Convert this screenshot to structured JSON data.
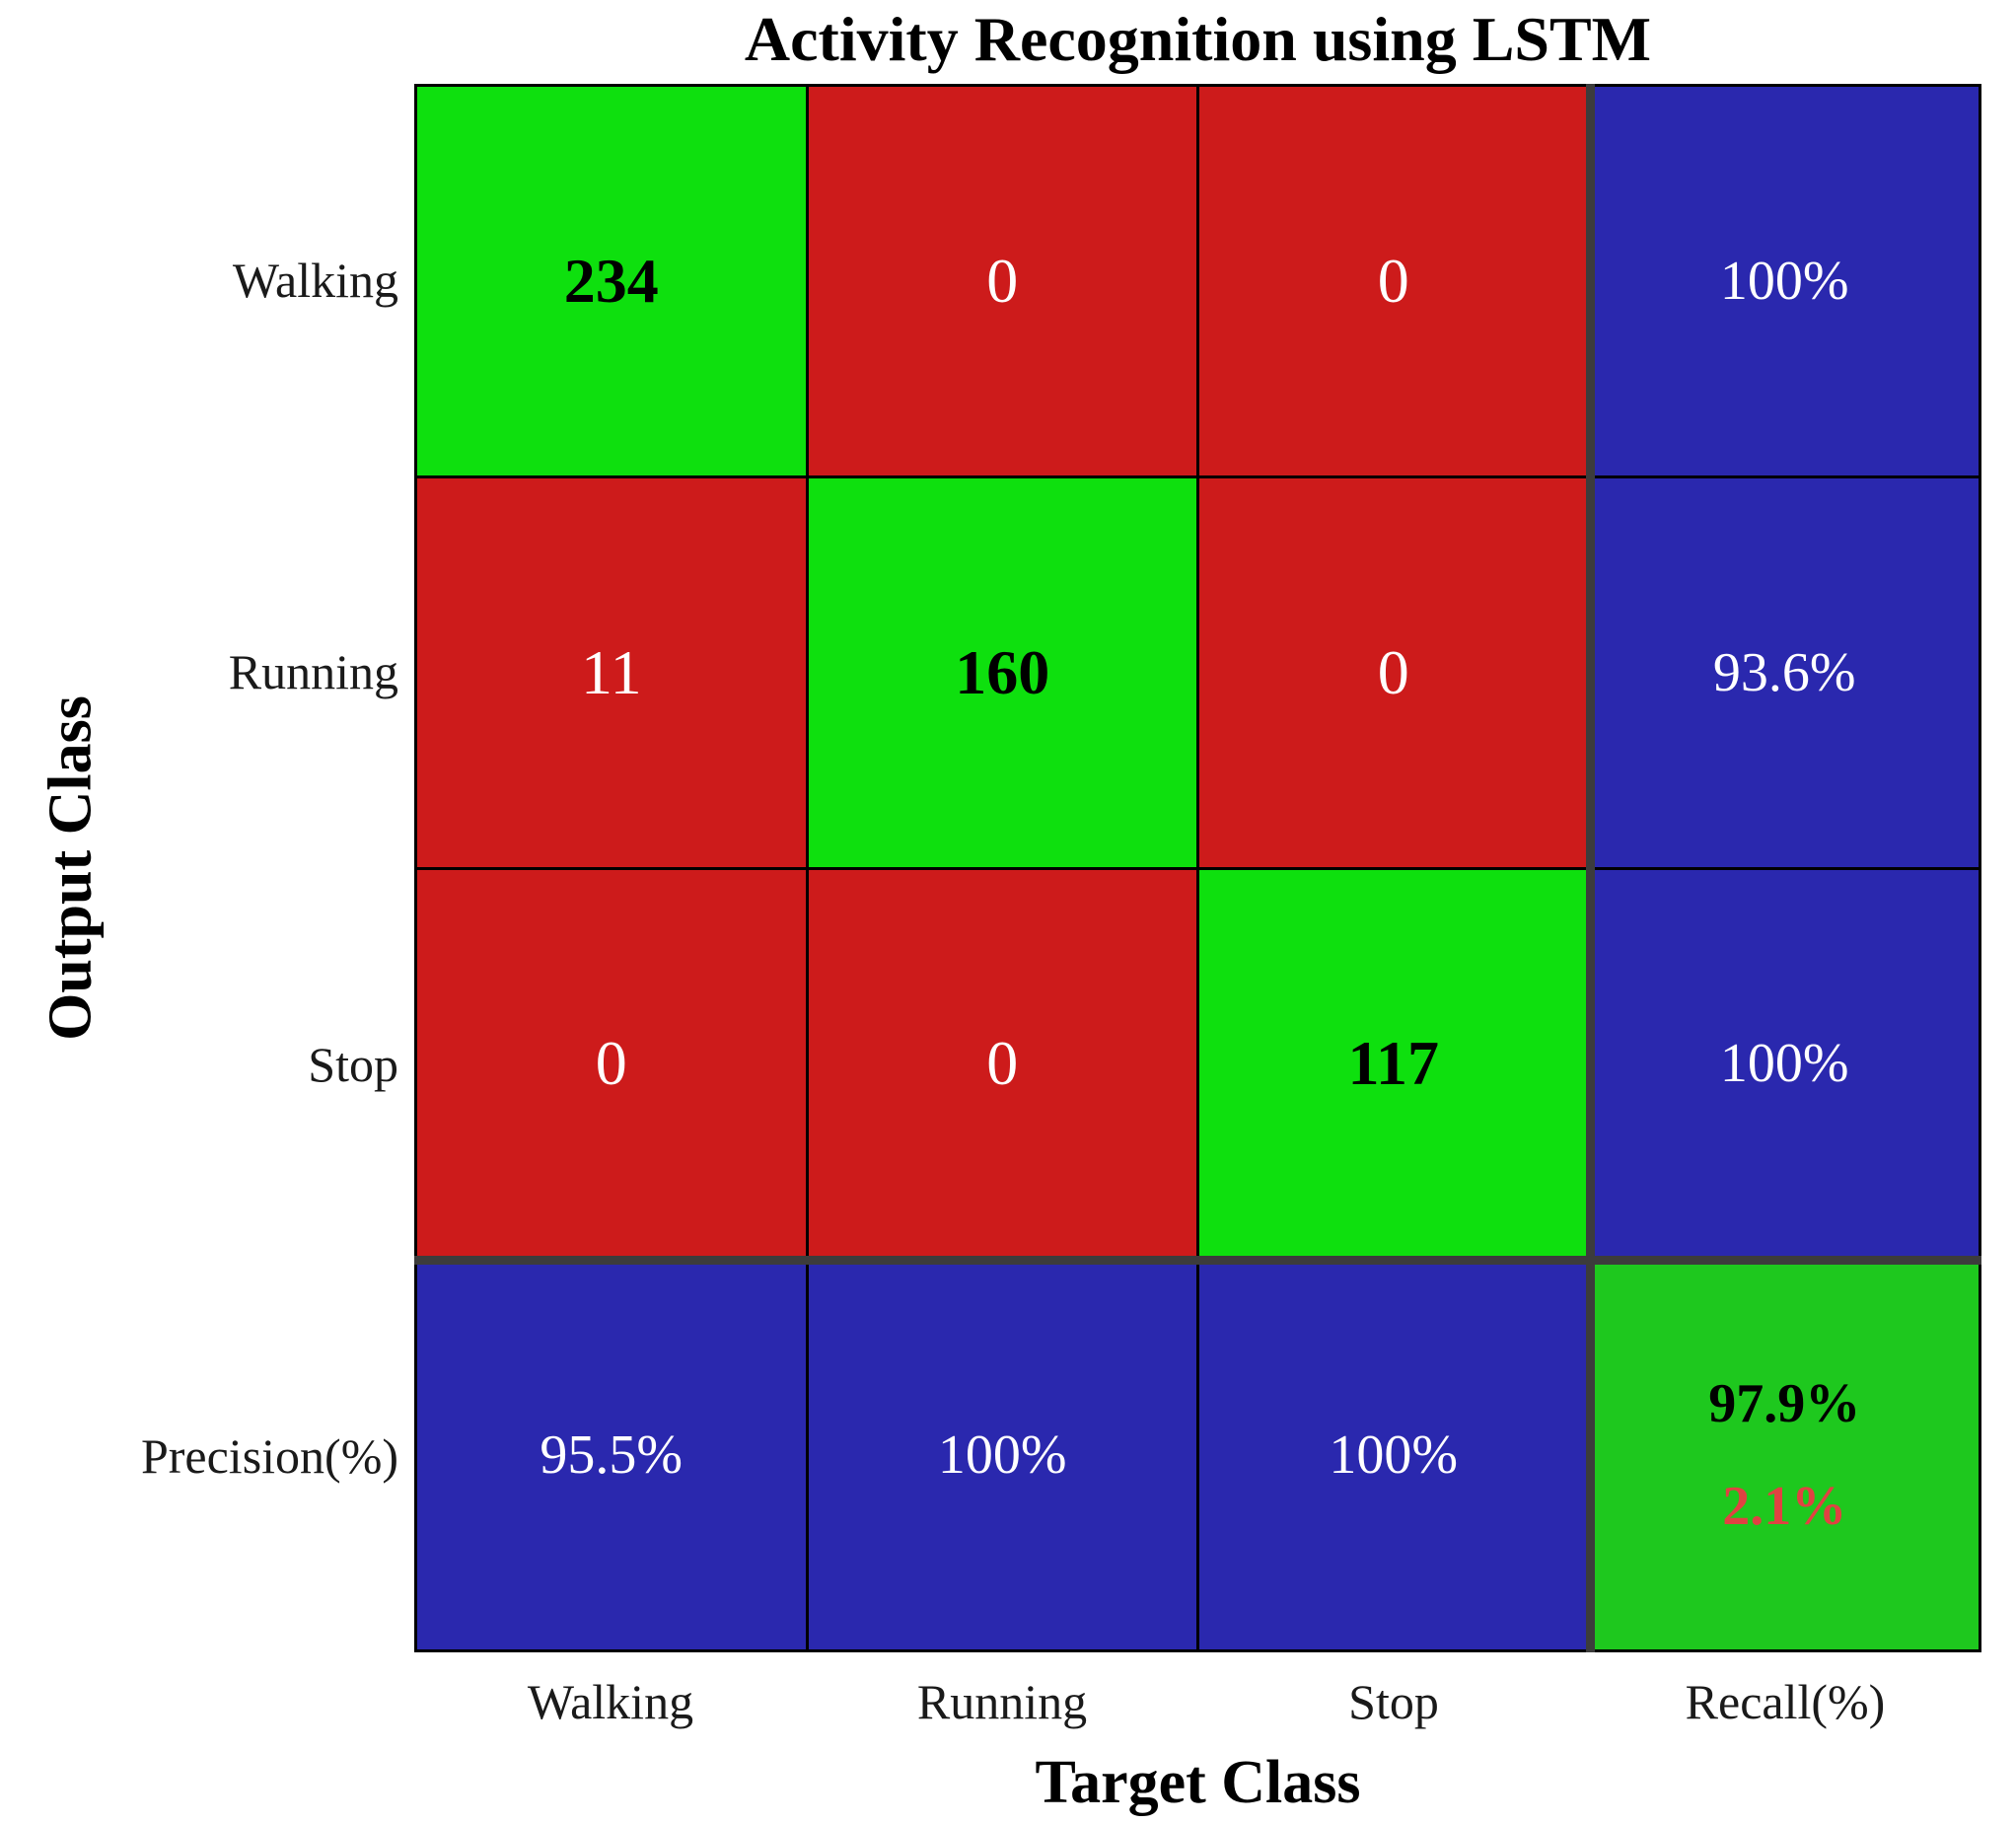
{
  "title": "Activity Recognition using LSTM",
  "axes": {
    "x_title": "Target Class",
    "y_title": "Output Class"
  },
  "row_labels": [
    "Walking",
    "Running",
    "Stop",
    "Precision(%)"
  ],
  "col_labels": [
    "Walking",
    "Running",
    "Stop",
    "Recall(%)"
  ],
  "colors": {
    "green": "#0ee00e",
    "red": "#cd1b1b",
    "blue": "#2a28ae",
    "summary_green": "#1ec81e",
    "black": "#000000",
    "white": "#ffffff",
    "error_red": "#e04242",
    "separator": "#3c3c3c",
    "grid_line": "#000000"
  },
  "cells": [
    {
      "bg": "green",
      "lines": [
        {
          "text": "234",
          "fg": "black",
          "bold": true,
          "kind": "count"
        }
      ]
    },
    {
      "bg": "red",
      "lines": [
        {
          "text": "0",
          "fg": "white",
          "bold": false,
          "kind": "count"
        }
      ]
    },
    {
      "bg": "red",
      "lines": [
        {
          "text": "0",
          "fg": "white",
          "bold": false,
          "kind": "count"
        }
      ]
    },
    {
      "bg": "blue",
      "lines": [
        {
          "text": "100%",
          "fg": "white",
          "bold": false,
          "kind": "percent"
        }
      ]
    },
    {
      "bg": "red",
      "lines": [
        {
          "text": "11",
          "fg": "white",
          "bold": false,
          "kind": "count"
        }
      ]
    },
    {
      "bg": "green",
      "lines": [
        {
          "text": "160",
          "fg": "black",
          "bold": true,
          "kind": "count"
        }
      ]
    },
    {
      "bg": "red",
      "lines": [
        {
          "text": "0",
          "fg": "white",
          "bold": false,
          "kind": "count"
        }
      ]
    },
    {
      "bg": "blue",
      "lines": [
        {
          "text": "93.6%",
          "fg": "white",
          "bold": false,
          "kind": "percent"
        }
      ]
    },
    {
      "bg": "red",
      "lines": [
        {
          "text": "0",
          "fg": "white",
          "bold": false,
          "kind": "count"
        }
      ]
    },
    {
      "bg": "red",
      "lines": [
        {
          "text": "0",
          "fg": "white",
          "bold": false,
          "kind": "count"
        }
      ]
    },
    {
      "bg": "green",
      "lines": [
        {
          "text": "117",
          "fg": "black",
          "bold": true,
          "kind": "count"
        }
      ]
    },
    {
      "bg": "blue",
      "lines": [
        {
          "text": "100%",
          "fg": "white",
          "bold": false,
          "kind": "percent"
        }
      ]
    },
    {
      "bg": "blue",
      "lines": [
        {
          "text": "95.5%",
          "fg": "white",
          "bold": false,
          "kind": "percent"
        }
      ]
    },
    {
      "bg": "blue",
      "lines": [
        {
          "text": "100%",
          "fg": "white",
          "bold": false,
          "kind": "percent"
        }
      ]
    },
    {
      "bg": "blue",
      "lines": [
        {
          "text": "100%",
          "fg": "white",
          "bold": false,
          "kind": "percent"
        }
      ]
    },
    {
      "bg": "summary_green",
      "lines": [
        {
          "text": "97.9%",
          "fg": "black",
          "bold": true,
          "kind": "percent"
        },
        {
          "text": "2.1%",
          "fg": "error_red",
          "bold": true,
          "kind": "percent"
        }
      ]
    }
  ],
  "chart_data": {
    "type": "heatmap",
    "subtype": "confusion_matrix",
    "title": "Activity Recognition using LSTM",
    "xlabel": "Target Class",
    "ylabel": "Output Class",
    "classes": [
      "Walking",
      "Running",
      "Stop"
    ],
    "matrix_rows_are_output_class": [
      [
        234,
        0,
        0
      ],
      [
        11,
        160,
        0
      ],
      [
        0,
        0,
        117
      ]
    ],
    "recall_percent_by_output_class": [
      100,
      93.6,
      100
    ],
    "precision_percent_by_target_class": [
      95.5,
      100,
      100
    ],
    "overall_accuracy_percent": 97.9,
    "overall_error_percent": 2.1,
    "legend_position": "none",
    "grid": true,
    "cell_color_rule": "diagonal=green, off-diagonal=red, precision/recall=blue, overall=green"
  }
}
